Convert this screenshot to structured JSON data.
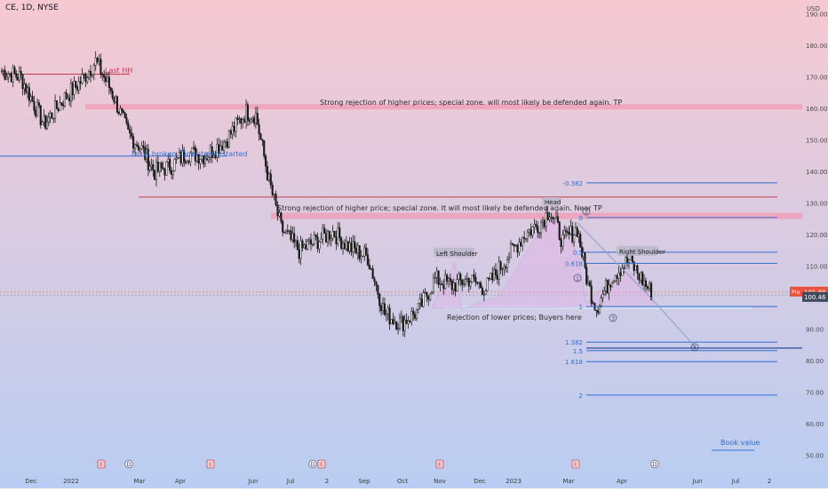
{
  "header": {
    "symbol_line": "CE, 1D, NYSE"
  },
  "price_axis": {
    "currency": "USD",
    "ticks": [
      "190.00",
      "180.00",
      "170.00",
      "160.00",
      "150.00",
      "140.00",
      "130.00",
      "120.00",
      "110.00",
      "100.00",
      "90.00",
      "80.00",
      "70.00",
      "60.00",
      "50.00"
    ],
    "pre_label": "Pre",
    "pre_value": "101.88",
    "last_value": "100.46"
  },
  "time_axis": {
    "labels": [
      "Dec",
      "2022",
      "Mar",
      "Apr",
      "Jun",
      "Jul",
      "2",
      "Sep",
      "Oct",
      "Nov",
      "Dec",
      "2023",
      "Mar",
      "Apr",
      "Jun",
      "Jul",
      "2"
    ]
  },
  "annotations": {
    "last_hh": "Last HH",
    "top_zone": "Strong rejection of higher prices; special zone. will most likely be defended again. TP",
    "dow_broken": "DOW broken. Downtrend started",
    "mid_zone": "Strong rejection of higher price; special zone. It will most likely be defended again. Near TP",
    "head": "Head",
    "left_shoulder": "Left Shoulder",
    "right_shoulder": "Right Shoulder",
    "rejection_lower": "Rejection of lower prices; Buyers here",
    "book_value": "Book value"
  },
  "fib_levels": [
    "-0.382",
    "0",
    "0.5",
    "0.618",
    "1",
    "1.382",
    "1.5",
    "1.618",
    "2"
  ],
  "wave_labels": [
    "2",
    "1",
    "3",
    "4",
    "5"
  ],
  "event_markers": [
    "E",
    "D",
    "E",
    "D",
    "E",
    "E",
    "E",
    "D"
  ],
  "colors": {
    "bg_top": "#f6c9d2",
    "bg_bottom": "#b9cdf2",
    "candle": "#1a1a1a",
    "zone": "#f29bb3",
    "blue_line": "#2f6fd1",
    "red_line": "#c23b4b",
    "pattern_fill": "#e3b2e6",
    "pre_badge": "#e8523d"
  },
  "chart_data": {
    "type": "candlestick",
    "title": "CE, 1D, NYSE",
    "ylim": [
      50,
      195
    ],
    "x_range": [
      "2021-11-15",
      "2023-09-05"
    ],
    "series": [
      {
        "values": [
          [
            "2021-11-15",
            172
          ],
          [
            "2021-12-01",
            170
          ],
          [
            "2021-12-20",
            155
          ],
          [
            "2022-01-05",
            163
          ],
          [
            "2022-01-18",
            168
          ],
          [
            "2022-02-01",
            175
          ],
          [
            "2022-02-15",
            165
          ],
          [
            "2022-02-28",
            152
          ],
          [
            "2022-03-10",
            148
          ],
          [
            "2022-03-22",
            140
          ],
          [
            "2022-04-05",
            142
          ],
          [
            "2022-04-18",
            146
          ],
          [
            "2022-05-03",
            145
          ],
          [
            "2022-05-20",
            150
          ],
          [
            "2022-06-06",
            159
          ],
          [
            "2022-06-14",
            158
          ],
          [
            "2022-06-25",
            137
          ],
          [
            "2022-07-05",
            122
          ],
          [
            "2022-07-20",
            115
          ],
          [
            "2022-08-03",
            118
          ],
          [
            "2022-08-17",
            121
          ],
          [
            "2022-08-31",
            116
          ],
          [
            "2022-09-15",
            113
          ],
          [
            "2022-09-29",
            95
          ],
          [
            "2022-10-13",
            92
          ],
          [
            "2022-10-27",
            96
          ],
          [
            "2022-11-10",
            106
          ],
          [
            "2022-11-24",
            104
          ],
          [
            "2022-12-08",
            106
          ],
          [
            "2022-12-22",
            103
          ],
          [
            "2023-01-09",
            113
          ],
          [
            "2023-01-23",
            120
          ],
          [
            "2023-02-06",
            124
          ],
          [
            "2023-02-13",
            128
          ],
          [
            "2023-02-24",
            118
          ],
          [
            "2023-03-08",
            122
          ],
          [
            "2023-03-17",
            104
          ],
          [
            "2023-03-24",
            97
          ],
          [
            "2023-04-06",
            107
          ],
          [
            "2023-04-20",
            112
          ],
          [
            "2023-05-04",
            104
          ],
          [
            "2023-05-10",
            101
          ]
        ]
      }
    ]
  }
}
